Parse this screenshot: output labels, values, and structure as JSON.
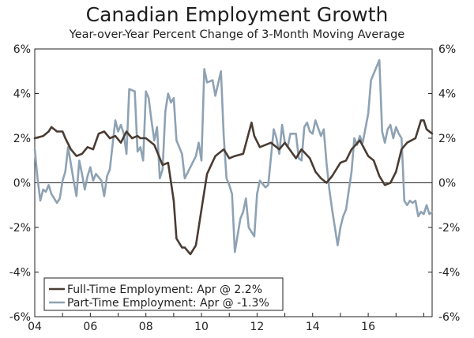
{
  "chart_data": {
    "type": "line",
    "title": "Canadian Employment Growth",
    "subtitle": "Year-over-Year Percent Change of 3-Month Moving Average",
    "ylim": [
      -6,
      6
    ],
    "xlim": [
      2004.0,
      2018.3
    ],
    "y_ticks": [
      "6%",
      "4%",
      "2%",
      "0%",
      "-2%",
      "-4%",
      "-6%"
    ],
    "y_tick_values": [
      6,
      4,
      2,
      0,
      -2,
      -4,
      -6
    ],
    "x_ticks": [
      "04",
      "06",
      "08",
      "10",
      "12",
      "14",
      "16"
    ],
    "x_tick_values": [
      2004,
      2006,
      2008,
      2010,
      2012,
      2014,
      2016
    ],
    "grid": false,
    "legend_position": "bottom-left",
    "colors": {
      "full_time": "#4a3c33",
      "part_time": "#8ea2b3",
      "axis": "#222222"
    },
    "series": [
      {
        "name": "Full-Time Employment",
        "label": "Full-Time Employment: Apr @ 2.2%",
        "x": [
          2004.0,
          2004.3,
          2004.5,
          2004.6,
          2004.8,
          2005.0,
          2005.1,
          2005.3,
          2005.5,
          2005.7,
          2005.9,
          2006.1,
          2006.3,
          2006.5,
          2006.7,
          2006.9,
          2007.1,
          2007.3,
          2007.5,
          2007.7,
          2007.8,
          2008.0,
          2008.3,
          2008.6,
          2008.8,
          2009.0,
          2009.1,
          2009.3,
          2009.4,
          2009.6,
          2009.8,
          2010.0,
          2010.2,
          2010.5,
          2010.8,
          2011.0,
          2011.2,
          2011.5,
          2011.8,
          2011.9,
          2012.1,
          2012.5,
          2012.8,
          2013.0,
          2013.4,
          2013.6,
          2013.9,
          2014.1,
          2014.3,
          2014.5,
          2014.7,
          2015.0,
          2015.2,
          2015.4,
          2015.7,
          2016.0,
          2016.2,
          2016.4,
          2016.6,
          2016.8,
          2017.0,
          2017.2,
          2017.4,
          2017.7,
          2017.9,
          2018.0,
          2018.1,
          2018.3
        ],
        "values": [
          2.0,
          2.1,
          2.3,
          2.5,
          2.3,
          2.3,
          2.0,
          1.5,
          1.2,
          1.3,
          1.6,
          1.5,
          2.2,
          2.3,
          2.0,
          2.1,
          1.8,
          2.3,
          2.0,
          2.1,
          2.0,
          2.0,
          1.7,
          0.8,
          0.9,
          -0.8,
          -2.5,
          -2.9,
          -2.9,
          -3.2,
          -2.8,
          -1.2,
          0.4,
          1.2,
          1.5,
          1.1,
          1.2,
          1.3,
          2.7,
          2.1,
          1.6,
          1.8,
          1.5,
          1.8,
          1.1,
          1.5,
          1.1,
          0.5,
          0.2,
          0.0,
          0.3,
          0.9,
          1.0,
          1.5,
          1.9,
          1.2,
          1.0,
          0.3,
          -0.1,
          0.0,
          0.5,
          1.5,
          1.8,
          2.0,
          2.8,
          2.8,
          2.4,
          2.2
        ]
      },
      {
        "name": "Part-Time Employment",
        "label": "Part-Time Employment: Apr @ -1.3%",
        "x": [
          2004.0,
          2004.1,
          2004.2,
          2004.3,
          2004.4,
          2004.5,
          2004.6,
          2004.8,
          2004.9,
          2005.0,
          2005.1,
          2005.2,
          2005.4,
          2005.5,
          2005.6,
          2005.7,
          2005.8,
          2005.9,
          2006.0,
          2006.1,
          2006.2,
          2006.4,
          2006.5,
          2006.6,
          2006.7,
          2006.9,
          2007.0,
          2007.1,
          2007.2,
          2007.3,
          2007.4,
          2007.6,
          2007.7,
          2007.8,
          2007.9,
          2008.0,
          2008.1,
          2008.2,
          2008.3,
          2008.4,
          2008.5,
          2008.6,
          2008.7,
          2008.8,
          2008.9,
          2009.0,
          2009.1,
          2009.3,
          2009.4,
          2009.6,
          2009.8,
          2009.9,
          2010.0,
          2010.1,
          2010.2,
          2010.4,
          2010.5,
          2010.7,
          2010.8,
          2010.9,
          2011.0,
          2011.1,
          2011.2,
          2011.4,
          2011.5,
          2011.6,
          2011.7,
          2011.9,
          2012.0,
          2012.1,
          2012.3,
          2012.4,
          2012.6,
          2012.7,
          2012.8,
          2012.9,
          2013.0,
          2013.1,
          2013.2,
          2013.4,
          2013.5,
          2013.6,
          2013.7,
          2013.8,
          2013.9,
          2014.0,
          2014.1,
          2014.3,
          2014.4,
          2014.5,
          2014.6,
          2014.7,
          2014.9,
          2015.0,
          2015.1,
          2015.2,
          2015.4,
          2015.5,
          2015.6,
          2015.7,
          2015.8,
          2016.0,
          2016.1,
          2016.2,
          2016.4,
          2016.5,
          2016.6,
          2016.7,
          2016.8,
          2016.9,
          2017.0,
          2017.1,
          2017.2,
          2017.3,
          2017.4,
          2017.5,
          2017.6,
          2017.7,
          2017.8,
          2017.9,
          2018.0,
          2018.1,
          2018.2,
          2018.3
        ],
        "values": [
          1.5,
          0.2,
          -0.8,
          -0.3,
          -0.4,
          -0.1,
          -0.5,
          -0.9,
          -0.7,
          0.1,
          0.5,
          1.6,
          0.1,
          -0.6,
          1.0,
          0.4,
          -0.3,
          0.3,
          0.7,
          0.1,
          0.4,
          0.1,
          -0.6,
          0.3,
          0.6,
          2.8,
          2.3,
          2.6,
          2.2,
          1.3,
          4.2,
          4.1,
          1.4,
          1.6,
          1.0,
          4.1,
          3.8,
          2.8,
          1.9,
          2.5,
          0.2,
          0.6,
          3.2,
          4.0,
          3.6,
          3.8,
          1.9,
          1.3,
          0.2,
          0.7,
          1.2,
          1.8,
          1.0,
          5.1,
          4.5,
          4.6,
          3.9,
          5.0,
          2.1,
          0.2,
          -0.1,
          -0.5,
          -3.1,
          -1.6,
          -1.3,
          -0.7,
          -2.0,
          -2.4,
          -0.5,
          0.1,
          -0.2,
          -0.1,
          2.4,
          2.0,
          1.3,
          2.6,
          1.8,
          1.6,
          2.2,
          2.2,
          1.1,
          1.0,
          2.5,
          2.7,
          2.3,
          2.2,
          2.8,
          2.1,
          2.4,
          0.9,
          -0.3,
          -1.2,
          -2.8,
          -2.0,
          -1.5,
          -1.2,
          0.5,
          2.0,
          1.7,
          2.1,
          1.8,
          3.1,
          4.6,
          4.9,
          5.5,
          2.3,
          1.8,
          2.4,
          2.6,
          2.0,
          2.5,
          2.2,
          2.0,
          -0.8,
          -1.0,
          -0.8,
          -0.9,
          -0.8,
          -1.5,
          -1.3,
          -1.4,
          -1.0,
          -1.4,
          -1.3
        ]
      }
    ]
  }
}
